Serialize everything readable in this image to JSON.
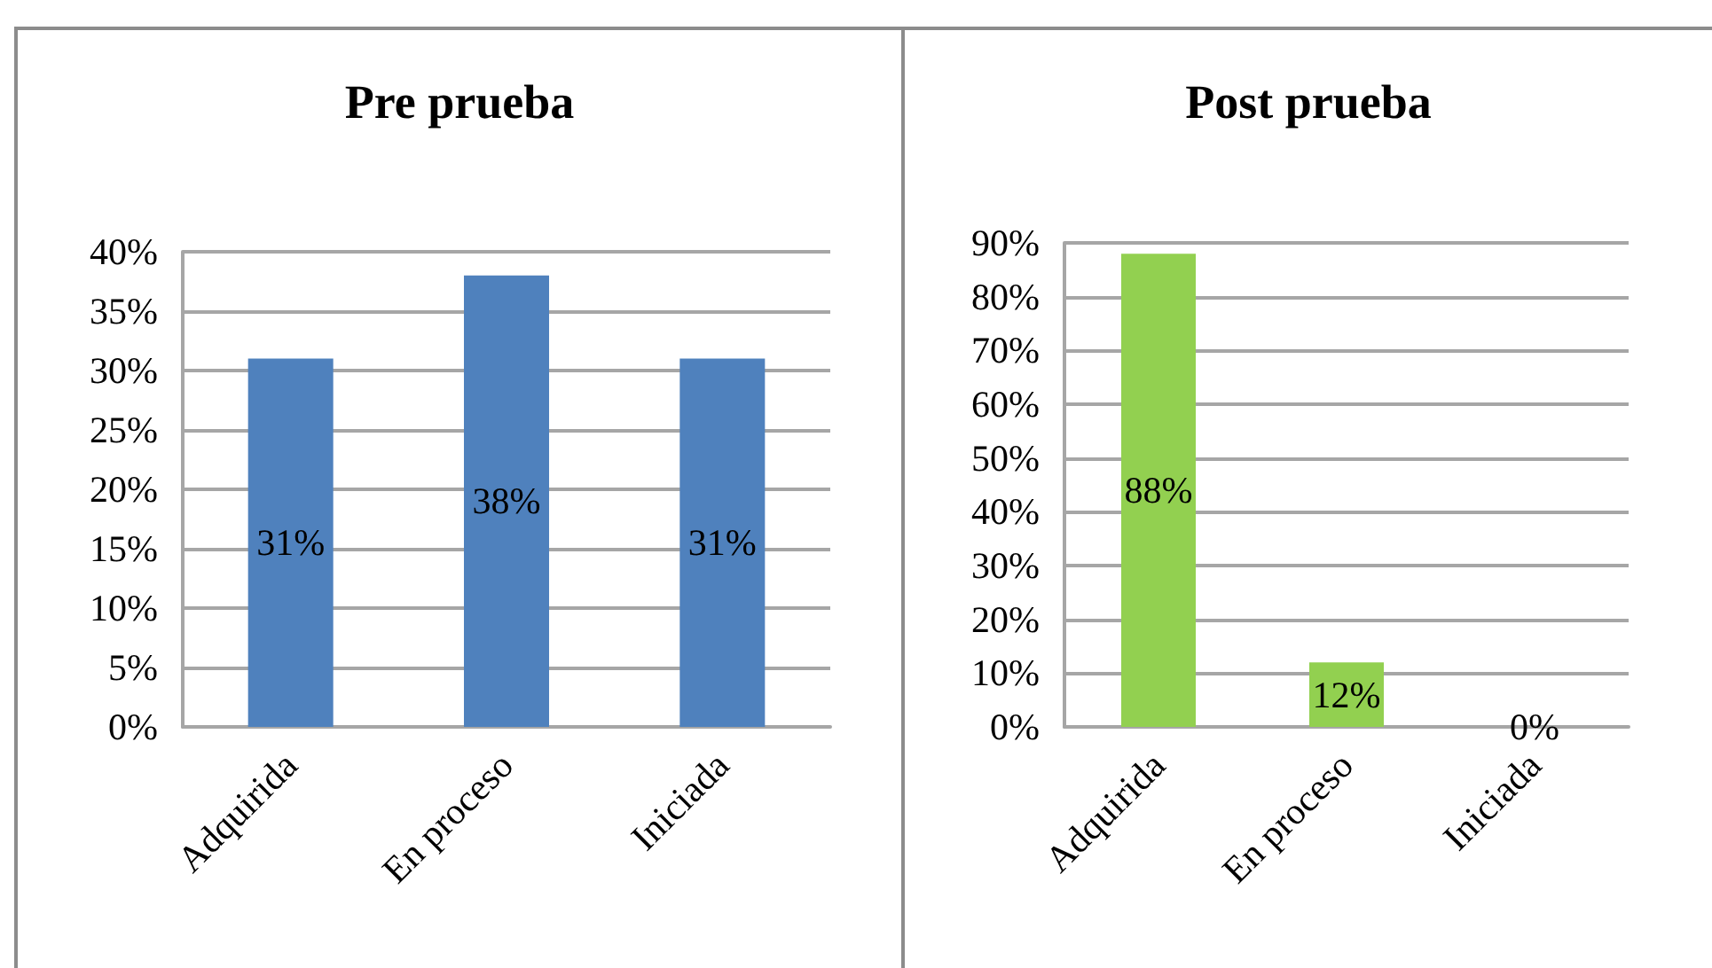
{
  "chart_data": [
    {
      "type": "bar",
      "title": "Pre prueba",
      "categories": [
        "Adquirida",
        "En proceso",
        "Iniciada"
      ],
      "values": [
        31,
        38,
        31
      ],
      "color": "#4f81bd",
      "value_labels": [
        "31%",
        "38%",
        "31%"
      ],
      "ylim": [
        0,
        40
      ],
      "yticks": [
        {
          "value": 0,
          "label": "0%"
        },
        {
          "value": 5,
          "label": "5%"
        },
        {
          "value": 10,
          "label": "10%"
        },
        {
          "value": 15,
          "label": "15%"
        },
        {
          "value": 20,
          "label": "20%"
        },
        {
          "value": 25,
          "label": "25%"
        },
        {
          "value": 30,
          "label": "30%"
        },
        {
          "value": 35,
          "label": "35%"
        },
        {
          "value": 40,
          "label": "40%"
        }
      ],
      "grid": "y"
    },
    {
      "type": "bar",
      "title": "Post prueba",
      "categories": [
        "Adquirida",
        "En proceso",
        "Iniciada"
      ],
      "values": [
        88,
        12,
        0
      ],
      "color": "#92d050",
      "value_labels": [
        "88%",
        "12%",
        "0%"
      ],
      "ylim": [
        0,
        90
      ],
      "yticks": [
        {
          "value": 0,
          "label": "0%"
        },
        {
          "value": 10,
          "label": "10%"
        },
        {
          "value": 20,
          "label": "20%"
        },
        {
          "value": 30,
          "label": "30%"
        },
        {
          "value": 40,
          "label": "40%"
        },
        {
          "value": 50,
          "label": "50%"
        },
        {
          "value": 60,
          "label": "60%"
        },
        {
          "value": 70,
          "label": "70%"
        },
        {
          "value": 80,
          "label": "80%"
        },
        {
          "value": 90,
          "label": "90%"
        }
      ],
      "grid": "y"
    }
  ]
}
